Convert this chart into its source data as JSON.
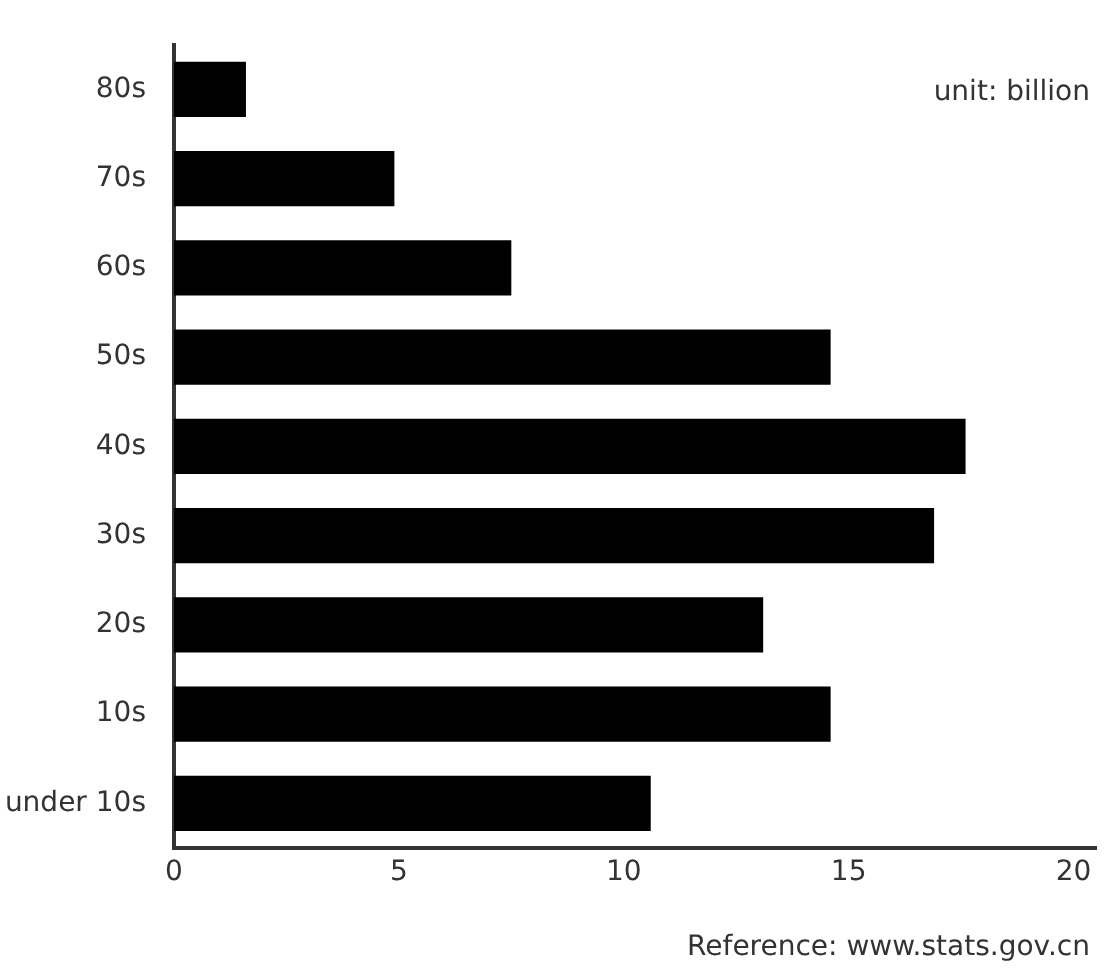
{
  "chart_data": {
    "type": "bar",
    "orientation": "horizontal",
    "categories": [
      "80s",
      "70s",
      "60s",
      "50s",
      "40s",
      "30s",
      "20s",
      "10s",
      "under 10s"
    ],
    "values": [
      1.6,
      4.9,
      7.5,
      14.6,
      17.6,
      16.9,
      13.1,
      14.6,
      10.6
    ],
    "color": "#000000",
    "xlim": [
      0,
      20.5
    ],
    "xticks": [
      0,
      5,
      10,
      15,
      20
    ],
    "annotations": [
      "unit: billion",
      "Reference: www.stats.gov.cn"
    ]
  }
}
